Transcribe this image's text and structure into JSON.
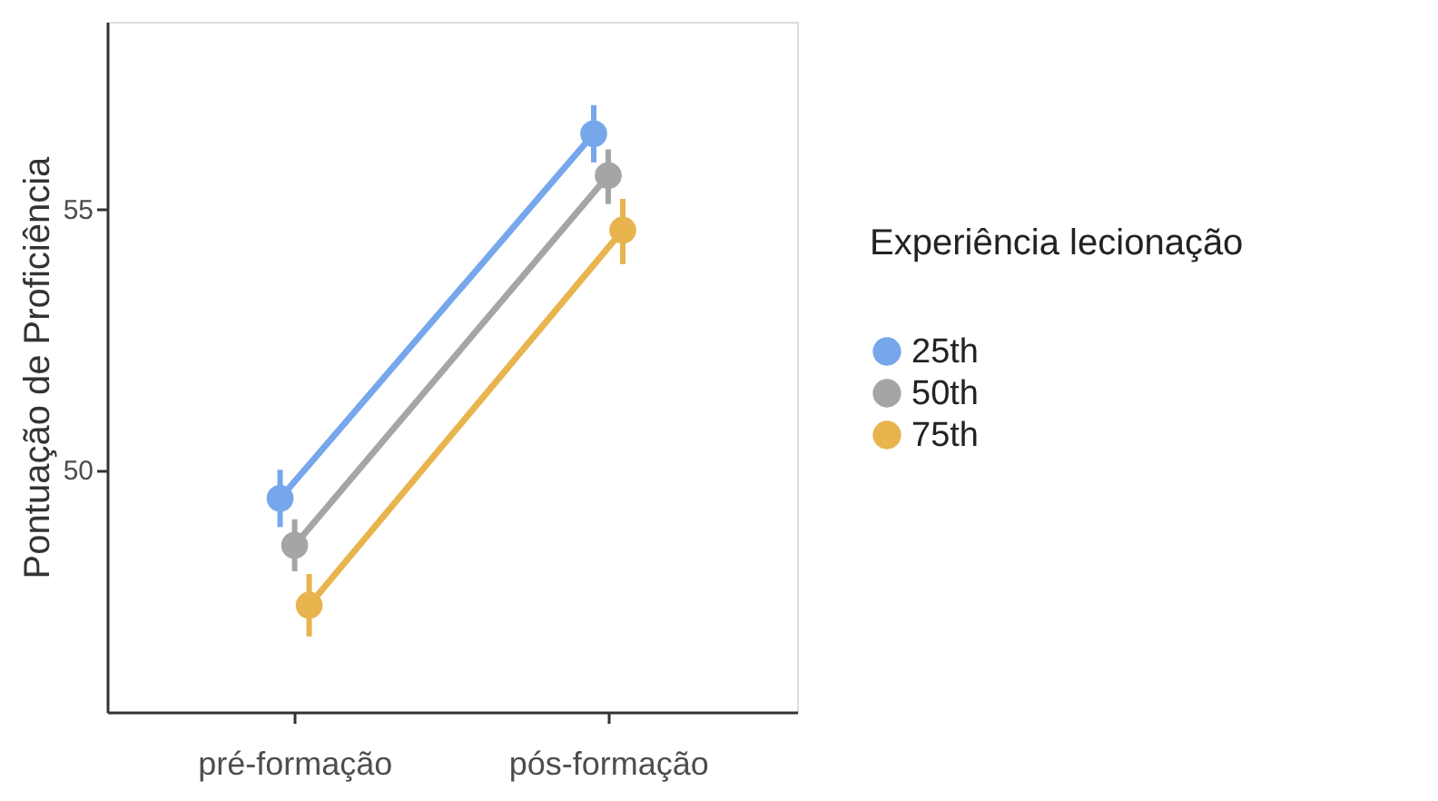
{
  "chart_data": {
    "type": "line",
    "ylabel": "Pontuação de Proficiência",
    "legend_title": "Experiência lecionação",
    "categories": [
      "pré-formação",
      "pós-formação"
    ],
    "series": [
      {
        "name": "25th",
        "color": "#77a7eb",
        "values": [
          49.45,
          56.45
        ],
        "errors": [
          [
            48.9,
            50.0
          ],
          [
            55.9,
            57.0
          ]
        ]
      },
      {
        "name": "50th",
        "color": "#a5a5a5",
        "values": [
          48.55,
          55.65
        ],
        "errors": [
          [
            48.05,
            49.05
          ],
          [
            55.1,
            56.15
          ]
        ]
      },
      {
        "name": "75th",
        "color": "#e8b44e",
        "values": [
          47.4,
          54.6
        ],
        "errors": [
          [
            46.8,
            48.0
          ],
          [
            53.95,
            55.2
          ]
        ]
      }
    ],
    "ylim": [
      45.35,
      58.6
    ],
    "yticks": [
      50,
      55
    ],
    "grid": false,
    "legend": "right",
    "marker": "circle",
    "line_style": "solid"
  }
}
